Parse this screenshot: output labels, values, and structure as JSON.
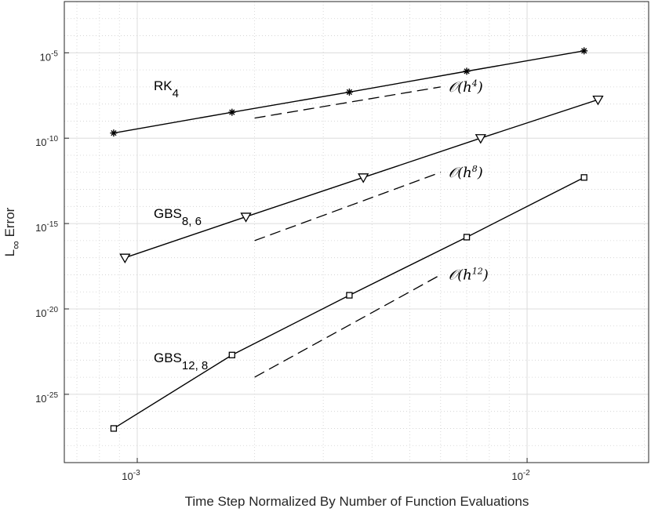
{
  "chart_data": {
    "type": "line",
    "title": "",
    "xlabel": "Time Step Normalized By Number of Function Evaluations",
    "ylabel": "L∞ Error",
    "xscale": "log",
    "yscale": "log",
    "xlim": [
      0.00065,
      0.0205
    ],
    "ylim": [
      1e-29,
      0.01
    ],
    "x_ticks": [
      {
        "value": 0.001,
        "base": "10",
        "exp": "-3"
      },
      {
        "value": 0.01,
        "base": "10",
        "exp": "-2"
      }
    ],
    "y_ticks": [
      {
        "value": 1e-05,
        "base": "10",
        "exp": "-5"
      },
      {
        "value": 1e-10,
        "base": "10",
        "exp": "-10"
      },
      {
        "value": 1e-15,
        "base": "10",
        "exp": "-15"
      },
      {
        "value": 1e-20,
        "base": "10",
        "exp": "-20"
      },
      {
        "value": 1e-25,
        "base": "10",
        "exp": "-25"
      }
    ],
    "grid": true,
    "minor_grid": true,
    "series": [
      {
        "label": {
          "text": "RK",
          "sub": "4"
        },
        "marker": "asterisk",
        "x": [
          0.00087,
          0.00175,
          0.0035,
          0.007,
          0.014
        ],
        "y": [
          2e-10,
          3.3e-09,
          5e-08,
          8.3e-07,
          1.3e-05
        ]
      },
      {
        "label": {
          "text": "GBS",
          "sub": "8, 6"
        },
        "marker": "triangle-down",
        "x": [
          0.00093,
          0.0019,
          0.0038,
          0.0076,
          0.0152
        ],
        "y": [
          1e-17,
          2.5e-15,
          5e-13,
          1e-10,
          1.8e-08
        ]
      },
      {
        "label": {
          "text": "GBS",
          "sub": "12, 8"
        },
        "marker": "square",
        "x": [
          0.00087,
          0.00175,
          0.0035,
          0.007,
          0.014
        ],
        "y": [
          1e-27,
          2e-23,
          6.3e-20,
          1.6e-16,
          5e-13
        ]
      }
    ],
    "reference_lines": [
      {
        "x": [
          0.002,
          0.006
        ],
        "y": [
          1.5e-09,
          1e-07
        ],
        "label": {
          "pre": "𝒪(",
          "var": "h",
          "exp": "4",
          "post": ")"
        }
      },
      {
        "x": [
          0.002,
          0.006
        ],
        "y": [
          1e-16,
          1e-12
        ],
        "label": {
          "pre": "𝒪(",
          "var": "h",
          "exp": "8",
          "post": ")"
        }
      },
      {
        "x": [
          0.002,
          0.006
        ],
        "y": [
          1e-24,
          1e-18
        ],
        "label": {
          "pre": "𝒪(",
          "var": "h",
          "exp": "12",
          "post": ")"
        }
      }
    ]
  }
}
